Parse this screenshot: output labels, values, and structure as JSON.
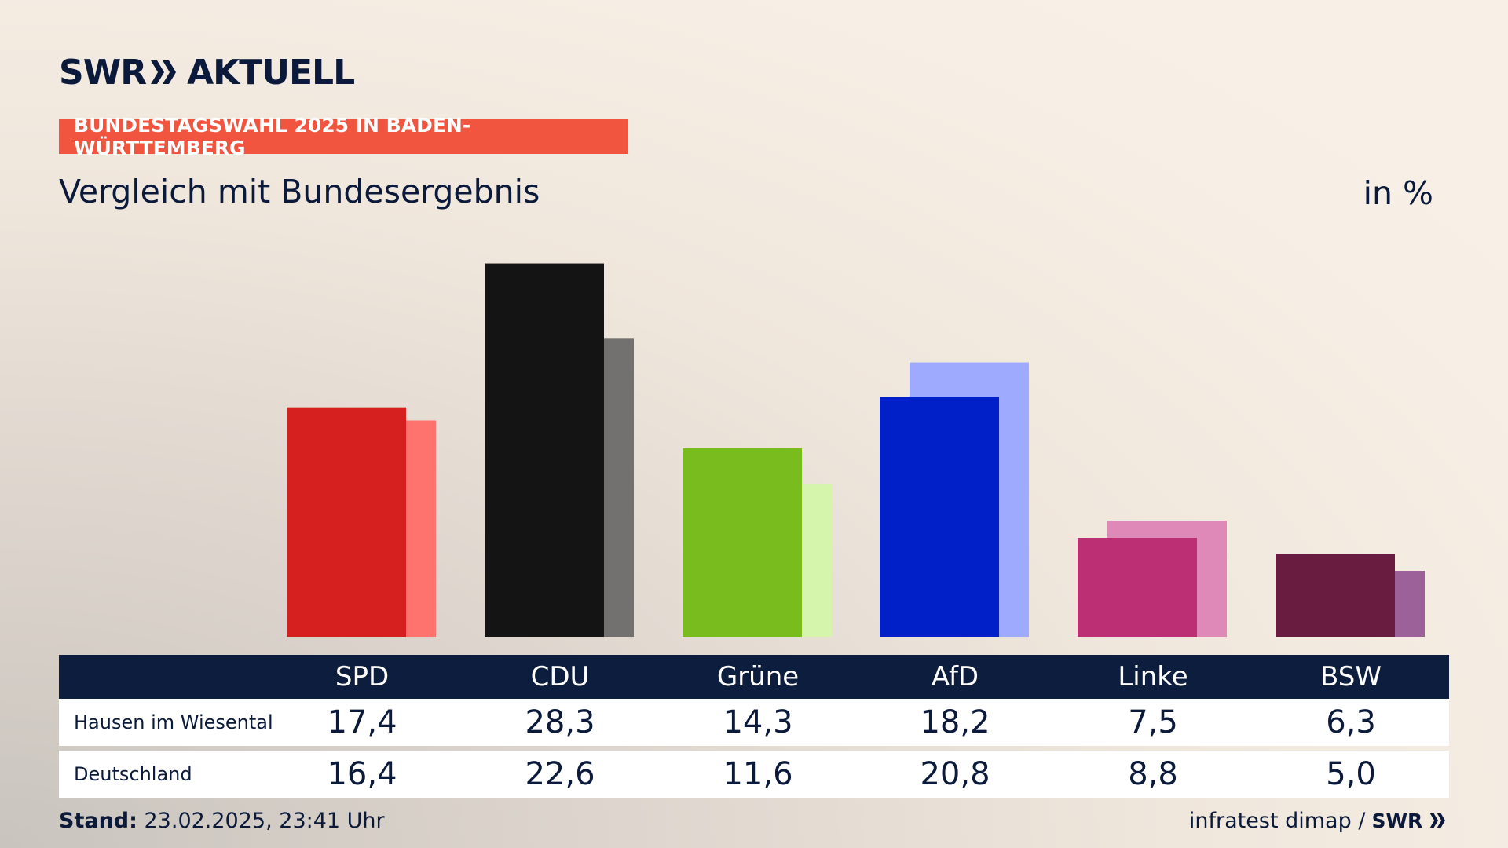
{
  "header": {
    "logo_left": "SWR",
    "logo_right": "AKTUELL",
    "badge": "BUNDESTAGSWAHL 2025 IN BADEN-WÜRTTEMBERG",
    "subtitle": "Vergleich mit Bundesergebnis",
    "unit": "in %"
  },
  "colors": {
    "badge_bg": "#f2553f",
    "table_header_bg": "#0c1d3e"
  },
  "chart_data": {
    "type": "bar",
    "categories": [
      "SPD",
      "CDU",
      "Grüne",
      "AfD",
      "Linke",
      "BSW"
    ],
    "series": [
      {
        "name": "Hausen im Wiesental",
        "values": [
          17.4,
          28.3,
          14.3,
          18.2,
          7.5,
          6.3
        ],
        "colors": [
          "#d61f1f",
          "#141414",
          "#79bc1e",
          "#0220c8",
          "#bd2f74",
          "#6a1b40"
        ]
      },
      {
        "name": "Deutschland",
        "values": [
          16.4,
          22.6,
          11.6,
          20.8,
          8.8,
          5.0
        ],
        "colors": [
          "#ff736e",
          "#727170",
          "#d6f5ac",
          "#9daafe",
          "#de89b7",
          "#9c6198"
        ]
      }
    ],
    "ylim": [
      0,
      30
    ]
  },
  "table": {
    "headers": [
      "SPD",
      "CDU",
      "Grüne",
      "AfD",
      "Linke",
      "BSW"
    ],
    "rows": [
      {
        "label": "Hausen im Wiesental",
        "values": [
          "17,4",
          "28,3",
          "14,3",
          "18,2",
          "7,5",
          "6,3"
        ]
      },
      {
        "label": "Deutschland",
        "values": [
          "16,4",
          "22,6",
          "11,6",
          "20,8",
          "8,8",
          "5,0"
        ]
      }
    ]
  },
  "footer": {
    "stand_label": "Stand:",
    "stand_value": " 23.02.2025, 23:41 Uhr",
    "source": "infratest dimap /",
    "source_logo": "SWR"
  }
}
